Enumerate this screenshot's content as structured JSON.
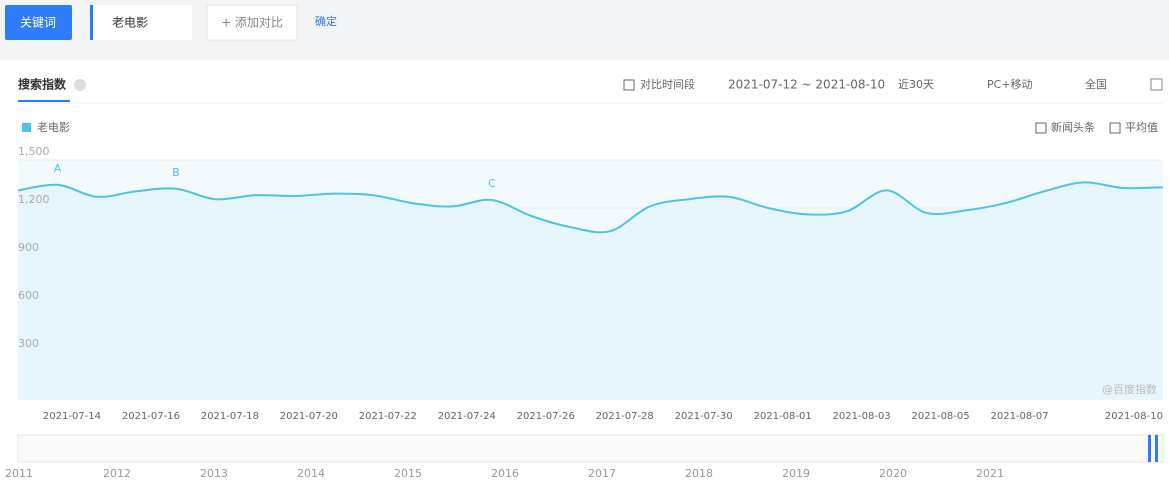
{
  "toolbar": {
    "keyword_tab": "关键词",
    "keyword": "老电影",
    "add_compare": "+ 添加对比",
    "confirm": "确定"
  },
  "panel": {
    "tab": "搜索指数",
    "compare_period": "对比时间段",
    "date_range": "2021-07-12 ~ 2021-08-10",
    "period": "近30天",
    "device": "PC+移动",
    "region": "全国",
    "news": "新闻头条",
    "average": "平均值",
    "watermark": "@百度指数"
  },
  "chart_data": {
    "type": "line",
    "x": [
      "2021-07-12",
      "2021-07-13",
      "2021-07-14",
      "2021-07-15",
      "2021-07-16",
      "2021-07-17",
      "2021-07-18",
      "2021-07-19",
      "2021-07-20",
      "2021-07-21",
      "2021-07-22",
      "2021-07-23",
      "2021-07-24",
      "2021-07-25",
      "2021-07-26",
      "2021-07-27",
      "2021-07-28",
      "2021-07-29",
      "2021-07-30",
      "2021-07-31",
      "2021-08-01",
      "2021-08-02",
      "2021-08-03",
      "2021-08-04",
      "2021-08-05",
      "2021-08-06",
      "2021-08-07",
      "2021-08-08",
      "2021-08-09",
      "2021-08-10"
    ],
    "series": [
      {
        "name": "老电影",
        "color": "#4fc3e6",
        "values": [
          1310,
          1345,
          1270,
          1305,
          1320,
          1255,
          1280,
          1275,
          1290,
          1280,
          1230,
          1210,
          1250,
          1150,
          1080,
          1055,
          1210,
          1255,
          1270,
          1200,
          1160,
          1180,
          1310,
          1170,
          1185,
          1230,
          1305,
          1360,
          1325,
          1330
        ]
      }
    ],
    "ylim": [
      0,
      1500
    ],
    "yticks": [
      {
        "value": 300,
        "label": "300"
      },
      {
        "value": 600,
        "label": "600"
      },
      {
        "value": 900,
        "label": "900"
      },
      {
        "value": 1200,
        "label": "1,200"
      },
      {
        "value": 1500,
        "label": "1,500"
      }
    ],
    "xticks": [
      "2021-07-14",
      "2021-07-16",
      "2021-07-18",
      "2021-07-20",
      "2021-07-22",
      "2021-07-24",
      "2021-07-26",
      "2021-07-28",
      "2021-07-30",
      "2021-08-01",
      "2021-08-03",
      "2021-08-05",
      "2021-08-07",
      "2021-08-10"
    ],
    "annotations": [
      {
        "label": "A",
        "x": "2021-07-13"
      },
      {
        "label": "B",
        "x": "2021-07-16"
      },
      {
        "label": "C",
        "x": "2021-07-24"
      }
    ],
    "grid": true
  },
  "timeline": {
    "years": [
      "2011",
      "2012",
      "2013",
      "2014",
      "2015",
      "2016",
      "2017",
      "2018",
      "2019",
      "2020",
      "2021"
    ]
  }
}
